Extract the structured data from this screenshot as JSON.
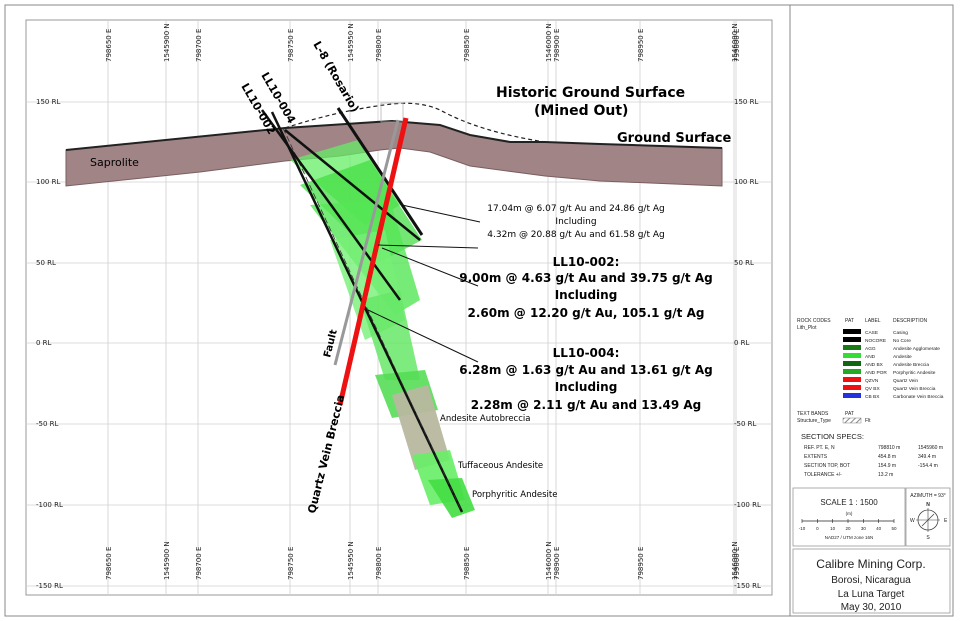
{
  "section": {
    "rl_labels": [
      "150 RL",
      "100 RL",
      "50 RL",
      "0 RL",
      "-50 RL",
      "-100 RL",
      "-150 RL"
    ],
    "grid_top_labels": [
      "798650 E",
      "1545900 N",
      "798700 E",
      "798750 E",
      "1545950 N",
      "798800 E",
      "798850 E",
      "1546000 N",
      "798900 E",
      "798950 E",
      "1546000 N",
      "799000 E"
    ],
    "grid_bottom_labels": [
      "798650 E",
      "1545900 N",
      "798700 E",
      "798750 E",
      "1545950 N",
      "798800 E",
      "798850 E",
      "1546000 N",
      "798900 E",
      "798950 E",
      "1546000 N",
      "799000 E"
    ]
  },
  "labels": {
    "saprolite": "Saprolite",
    "historic_line1": "Historic Ground Surface",
    "historic_line2": "(Mined Out)",
    "ground_surface": "Ground Surface",
    "l8": "L-8 (Rosario)",
    "ll10_004": "LL10-004",
    "ll10_002": "LL10-002",
    "fault": "Fault",
    "quartz_vein_breccia": "Quartz Vein Breccia",
    "andesite_autobreccia": "Andesite Autobreccia",
    "tuffaceous_andesite": "Tuffaceous Andesite",
    "porphyritic_andesite": "Porphyritic Andesite"
  },
  "intercepts": {
    "a1": "17.04m @ 6.07 g/t Au and 24.86 g/t Ag",
    "a2": "Including",
    "a3": "4.32m @ 20.88 g/t Au and 61.58 g/t Ag",
    "b_title": "LL10-002:",
    "b1": "9.00m @ 4.63 g/t Au and 39.75 g/t Ag",
    "b2": "Including",
    "b3": "2.60m @ 12.20 g/t Au, 105.1 g/t Ag",
    "c_title": "LL10-004:",
    "c1": "6.28m @ 1.63 g/t Au and 13.61 g/t Ag",
    "c2": "Including",
    "c3": "2.28m @ 2.11 g/t Au and 13.49 Ag"
  },
  "legend": {
    "header_codes": "ROCK CODES",
    "header_pat": "PAT",
    "header_label": "LABEL",
    "header_desc": "DESCRIPTION",
    "subheader": "Lith_Plot",
    "rows": [
      {
        "label": "CASE",
        "desc": "Casing",
        "color": "#000000"
      },
      {
        "label": "NOCORE",
        "desc": "No Core",
        "color": "#000000"
      },
      {
        "label": "AGG",
        "desc": "Andesite Agglomerate",
        "color": "#1a7a1a"
      },
      {
        "label": "AND",
        "desc": "Andesite",
        "color": "#33dd33"
      },
      {
        "label": "AND BX",
        "desc": "Andesite Breccia",
        "color": "#116611"
      },
      {
        "label": "AND POR",
        "desc": "Porphyritic Andesite",
        "color": "#22aa22"
      },
      {
        "label": "QZVN",
        "desc": "Quartz Vein",
        "color": "#ee1111"
      },
      {
        "label": "QV BX",
        "desc": "Quartz Vein Breccia",
        "color": "#ee1111"
      },
      {
        "label": "CB BX",
        "desc": "Carbonate Vein Breccia",
        "color": "#2233dd"
      }
    ],
    "text_bands": "TEXT BANDS",
    "text_bands_pat": "PAT",
    "structure_type": "Structure_Type",
    "flt": "Flt"
  },
  "specs": {
    "title": "SECTION SPECS:",
    "rows": [
      {
        "k": "REF. PT. E, N",
        "v1": "798810 m",
        "v2": "1545960 m"
      },
      {
        "k": "EXTENTS",
        "v1": "454.8 m",
        "v2": "349.4 m"
      },
      {
        "k": "SECTION TOP, BOT",
        "v1": "154.9 m",
        "v2": "-154.4 m"
      },
      {
        "k": "TOLERANCE +/-",
        "v1": "13.2 m",
        "v2": ""
      }
    ]
  },
  "scale": {
    "title": "SCALE 1 : 1500",
    "unit": "(m)",
    "ticks": [
      "-10",
      "0",
      "10",
      "20",
      "30",
      "40",
      "50"
    ],
    "datum": "NAD27 / UTM zone 16N",
    "azimuth": "AZIMUTH = 93°",
    "n": "N",
    "s": "S",
    "e": "E",
    "w": "W"
  },
  "title_block": {
    "company": "Calibre Mining Corp.",
    "location": "Borosi, Nicaragua",
    "target": "La Luna Target",
    "date": "May 30, 2010"
  }
}
